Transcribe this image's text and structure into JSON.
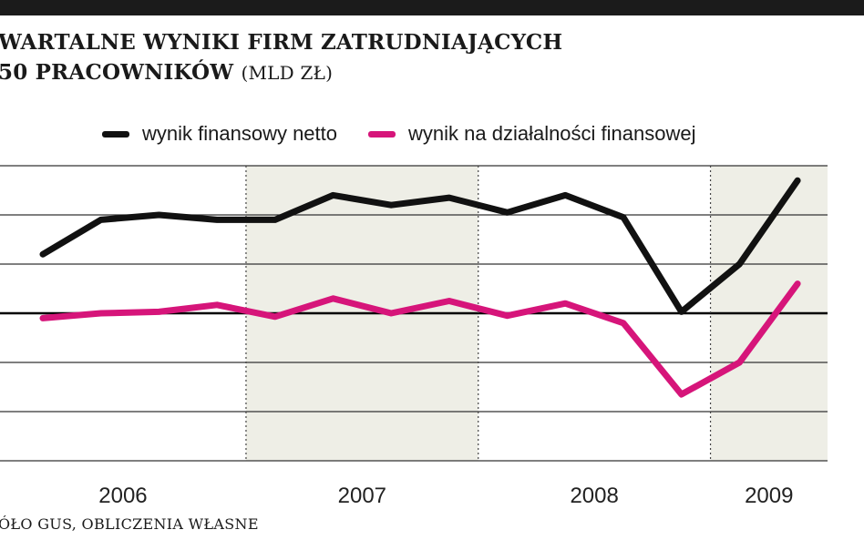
{
  "title": {
    "line1": "WARTALNE WYNIKI FIRM ZATRUDNIAJĄCYCH",
    "line2": "50 PRACOWNIKÓW",
    "unit": "(MLD ZŁ)"
  },
  "source": "ÓŁO GUS, OBLICZENIA WŁASNE",
  "colors": {
    "net": "#111111",
    "financial": "#d6157a",
    "shade": "#eeeee6",
    "grid": "#333333"
  },
  "chart_data": {
    "type": "line",
    "title": "WARTALNE WYNIKI FIRM ZATRUDNIAJĄCYCH 50 PRACOWNIKÓW (MLD ZŁ)",
    "x": [
      "2006 Q1",
      "2006 Q2",
      "2006 Q3",
      "2006 Q4",
      "2007 Q1",
      "2007 Q2",
      "2007 Q3",
      "2007 Q4",
      "2008 Q1",
      "2008 Q2",
      "2008 Q3",
      "2008 Q4",
      "2009 Q1",
      "2009 Q2"
    ],
    "year_labels": [
      "2006",
      "2007",
      "2008",
      "2009"
    ],
    "ylim": [
      -30,
      30
    ],
    "y_gridlines": [
      -30,
      -20,
      -10,
      0,
      10,
      20,
      30
    ],
    "shaded_years": [
      "2007",
      "2009"
    ],
    "grid": true,
    "legend_position": "top",
    "series": [
      {
        "name": "wynik finansowy netto",
        "color": "#111111",
        "values": [
          12,
          19,
          20,
          19,
          19,
          24,
          22,
          23.5,
          20.5,
          24,
          19.5,
          0.3,
          10,
          27
        ]
      },
      {
        "name": "wynik na działalności finansowej",
        "color": "#d6157a",
        "values": [
          -1,
          0,
          0.3,
          1.7,
          -0.7,
          3,
          0,
          2.5,
          -0.5,
          2,
          -2,
          -16.5,
          -10,
          6
        ]
      }
    ]
  }
}
